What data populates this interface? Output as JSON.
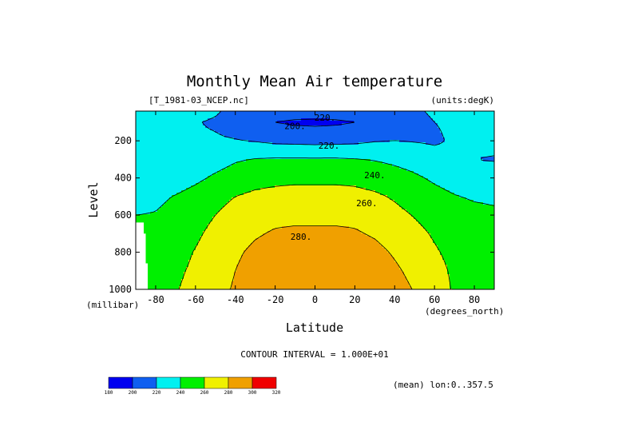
{
  "chart_data": {
    "type": "contour",
    "title": "Monthly Mean Air temperature",
    "source_label": "[T_1981-03_NCEP.nc]",
    "units_label": "(units:degK)",
    "xlabel": "Latitude",
    "x_units": "(degrees_north)",
    "ylabel": "Level",
    "y_units": "(millibar)",
    "xlim": [
      -90,
      90
    ],
    "ylim": [
      1000,
      40
    ],
    "x_ticks": [
      -80,
      -60,
      -40,
      -20,
      0,
      20,
      40,
      60,
      80
    ],
    "y_ticks": [
      200,
      400,
      600,
      800,
      1000
    ],
    "contour_interval_text": "CONTOUR INTERVAL = 1.000E+01",
    "contour_interval": 10,
    "footer_note": "(mean) lon:0..357.5",
    "contour_labels": [
      {
        "text": "220.",
        "lat": 5,
        "level": 75
      },
      {
        "text": "200.",
        "lat": -10,
        "level": 120
      },
      {
        "text": "220.",
        "lat": 7,
        "level": 225
      },
      {
        "text": "240.",
        "lat": 30,
        "level": 385
      },
      {
        "text": "260.",
        "lat": 26,
        "level": 535
      },
      {
        "text": "280.",
        "lat": -7,
        "level": 715
      }
    ],
    "colorbar": {
      "levels": [
        180,
        200,
        220,
        240,
        260,
        280,
        300,
        320
      ],
      "colors": [
        "#0000f0",
        "#0f5ff0",
        "#00f0f0",
        "#00f000",
        "#f0f000",
        "#f0a000",
        "#f00000"
      ]
    },
    "field": {
      "lats": [
        -90,
        -80,
        -70,
        -60,
        -50,
        -40,
        -30,
        -20,
        -10,
        0,
        10,
        20,
        30,
        40,
        50,
        60,
        70,
        80,
        90
      ],
      "levels": [
        40,
        100,
        200,
        300,
        400,
        500,
        600,
        700,
        800,
        900,
        1000
      ],
      "values": [
        [
          225,
          225,
          225,
          225,
          222,
          215,
          210,
          210,
          210,
          210,
          210,
          210,
          212,
          215,
          218,
          222,
          225,
          225,
          225
        ],
        [
          222,
          222,
          222,
          221,
          218,
          212,
          206,
          200,
          197,
          196,
          197,
          200,
          206,
          212,
          216,
          220,
          222,
          223,
          224
        ],
        [
          222,
          222,
          222,
          222,
          222,
          221,
          219,
          216,
          215,
          214,
          215,
          216,
          219,
          220,
          219,
          218,
          222,
          224,
          224
        ],
        [
          222,
          223,
          224,
          227,
          232,
          238,
          241,
          242,
          242,
          242,
          242,
          241,
          239,
          236,
          232,
          226,
          222,
          220,
          219
        ],
        [
          224,
          226,
          230,
          236,
          243,
          249,
          253,
          255,
          256,
          256,
          256,
          255,
          252,
          248,
          243,
          237,
          232,
          229,
          228
        ],
        [
          232,
          236,
          241,
          247,
          254,
          260,
          264,
          266,
          267,
          267,
          267,
          266,
          263,
          258,
          252,
          246,
          241,
          238,
          237
        ],
        [
          240,
          241,
          246,
          253,
          260,
          267,
          272,
          275,
          276,
          276,
          276,
          275,
          271,
          265,
          259,
          253,
          248,
          245,
          243
        ],
        [
          247,
          246,
          249,
          257,
          265,
          272,
          278,
          282,
          283,
          283,
          283,
          282,
          278,
          272,
          265,
          258,
          252,
          249,
          247
        ],
        [
          255,
          251,
          254,
          261,
          269,
          277,
          284,
          288,
          289,
          289,
          290,
          289,
          285,
          278,
          270,
          262,
          255,
          251,
          250
        ],
        [
          258,
          254,
          257,
          263,
          272,
          280,
          288,
          292,
          294,
          294,
          295,
          294,
          290,
          283,
          275,
          266,
          257,
          253,
          252
        ],
        [
          258,
          256,
          259,
          265,
          274,
          282,
          290,
          295,
          297,
          298,
          298,
          297,
          294,
          287,
          279,
          269,
          258,
          255,
          254
        ]
      ],
      "masked": [
        [
          -90,
          0
        ],
        [
          -90,
          640
        ],
        [
          -86,
          640
        ],
        [
          -86,
          700
        ],
        [
          -85,
          700
        ],
        [
          -85,
          860
        ],
        [
          -84,
          860
        ],
        [
          -84,
          1000
        ],
        [
          -90,
          1000
        ]
      ]
    }
  }
}
